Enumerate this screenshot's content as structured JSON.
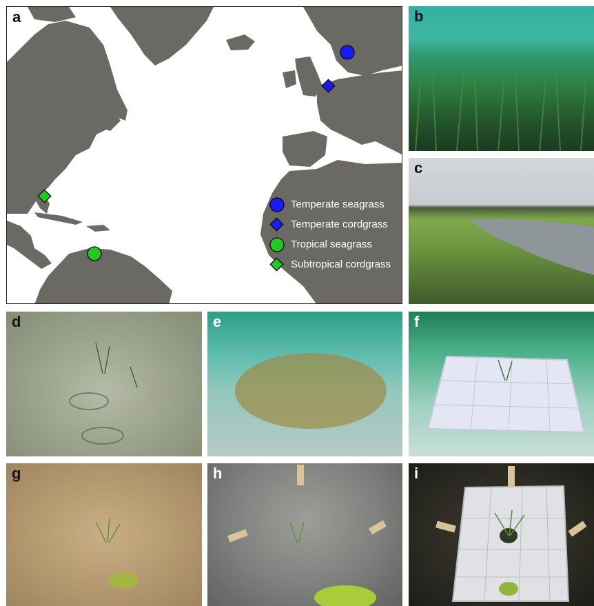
{
  "panel_labels": {
    "a": "a",
    "b": "b",
    "c": "c",
    "d": "d",
    "e": "e",
    "f": "f",
    "g": "g",
    "h": "h",
    "i": "i"
  },
  "map": {
    "land_color": "#6b6963",
    "ocean_color": "#ffffff",
    "legend": [
      {
        "label": "Temperate seagrass",
        "marker": "circle",
        "color": "#1a1aff"
      },
      {
        "label": "Temperate cordgrass",
        "marker": "diamond",
        "color": "#1a1aff"
      },
      {
        "label": "Tropical seagrass",
        "marker": "circle",
        "color": "#22c922"
      },
      {
        "label": "Subtropical cordgrass",
        "marker": "diamond",
        "color": "#22c922"
      }
    ],
    "sites": [
      {
        "type": "Temperate seagrass",
        "region": "Sweden"
      },
      {
        "type": "Temperate cordgrass",
        "region": "Netherlands"
      },
      {
        "type": "Tropical seagrass",
        "region": "Caribbean"
      },
      {
        "type": "Subtropical cordgrass",
        "region": "Florida"
      }
    ]
  },
  "photos": {
    "b": "seagrass-meadow-photo",
    "c": "salt-marsh-creek-photo",
    "d": "seagrass-shoots-on-sand-photo",
    "e": "seagrass-transplant-photo",
    "f": "seagrass-transplant-with-mesh-photo",
    "g": "cordgrass-tuft-on-mud-photo",
    "h": "cordgrass-transplant-with-stakes-photo",
    "i": "cordgrass-transplant-with-mesh-photo"
  }
}
